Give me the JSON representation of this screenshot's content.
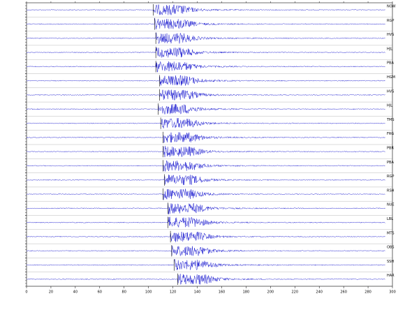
{
  "chart_data": {
    "type": "seismogram",
    "color": "#1a1ad0",
    "xlim": [
      0,
      300
    ],
    "xticks": [
      0,
      20,
      40,
      60,
      80,
      100,
      120,
      140,
      160,
      180,
      200,
      220,
      240,
      260,
      280,
      300
    ],
    "series": [
      {
        "name": "NOW",
        "onset": 104
      },
      {
        "name": "RGP",
        "onset": 105
      },
      {
        "name": "HVS",
        "onset": 106
      },
      {
        "name": "HJL",
        "onset": 106
      },
      {
        "name": "PBA",
        "onset": 106
      },
      {
        "name": "HGM",
        "onset": 109
      },
      {
        "name": "HVS",
        "onset": 109
      },
      {
        "name": "HJL",
        "onset": 108
      },
      {
        "name": "TMS",
        "onset": 110
      },
      {
        "name": "FRG",
        "onset": 112
      },
      {
        "name": "PBR",
        "onset": 112
      },
      {
        "name": "PBA",
        "onset": 112
      },
      {
        "name": "RGP",
        "onset": 113
      },
      {
        "name": "RSH",
        "onset": 112
      },
      {
        "name": "NUE",
        "onset": 116
      },
      {
        "name": "LBL",
        "onset": 116
      },
      {
        "name": "MTS",
        "onset": 118
      },
      {
        "name": "OBS",
        "onset": 119
      },
      {
        "name": "SSH",
        "onset": 121
      },
      {
        "name": "HAR",
        "onset": 124
      }
    ]
  }
}
